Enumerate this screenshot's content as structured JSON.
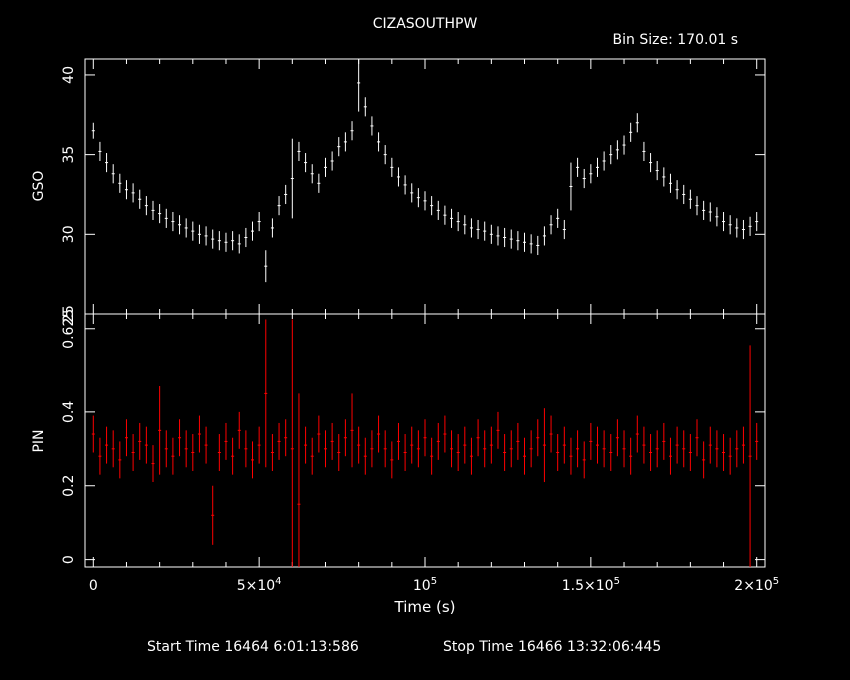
{
  "title": "CIZASOUTHPW",
  "bin_size": "Bin Size: 170.01 s",
  "footer": {
    "start": "Start Time 16464  6:01:13:586",
    "stop": "Stop Time 16466 13:32:06:445"
  },
  "colors": {
    "background": "#000000",
    "axes": "#ffffff",
    "gso": "#ffffff",
    "pin": "#ff0000"
  },
  "chart_data": [
    {
      "type": "scatter",
      "name": "gso-panel",
      "ylabel": "GSO",
      "xlim": [
        -2500,
        202500
      ],
      "ylim": [
        25,
        41
      ],
      "y_ticks": [
        {
          "v": 25,
          "label": "25"
        },
        {
          "v": 30,
          "label": "30"
        },
        {
          "v": 35,
          "label": "35"
        },
        {
          "v": 40,
          "label": "40"
        }
      ],
      "color": "#ffffff",
      "series": [
        {
          "x": [
            0,
            2000,
            4000,
            6000,
            8000,
            10000,
            12000,
            14000,
            16000,
            18000,
            20000,
            22000,
            24000,
            26000,
            28000,
            30000,
            32000,
            34000,
            36000,
            38000,
            40000,
            42000,
            44000,
            46000,
            48000,
            50000,
            52000,
            54000,
            56000,
            58000,
            60000,
            62000,
            64000,
            66000,
            68000,
            70000,
            72000,
            74000,
            76000,
            78000,
            80000,
            82000,
            84000,
            86000,
            88000,
            90000,
            92000,
            94000,
            96000,
            98000,
            100000,
            102000,
            104000,
            106000,
            108000,
            110000,
            112000,
            114000,
            116000,
            118000,
            120000,
            122000,
            124000,
            126000,
            128000,
            130000,
            132000,
            134000,
            136000,
            138000,
            140000,
            142000,
            144000,
            146000,
            148000,
            150000,
            152000,
            154000,
            156000,
            158000,
            160000,
            162000,
            164000,
            166000,
            168000,
            170000,
            172000,
            174000,
            176000,
            178000,
            180000,
            182000,
            184000,
            186000,
            188000,
            190000,
            192000,
            194000,
            196000,
            198000,
            200000
          ],
          "y": [
            36.5,
            35.2,
            34.5,
            33.8,
            33.2,
            32.8,
            32.6,
            32.2,
            31.8,
            31.5,
            31.3,
            31.0,
            30.8,
            30.6,
            30.4,
            30.2,
            30.0,
            29.9,
            29.7,
            29.6,
            29.5,
            29.6,
            29.4,
            29.8,
            30.2,
            30.8,
            28.0,
            30.4,
            31.8,
            32.5,
            33.5,
            35.2,
            34.5,
            33.8,
            33.2,
            34.2,
            34.6,
            35.5,
            35.8,
            36.5,
            39.5,
            38.0,
            36.8,
            35.8,
            35.0,
            34.2,
            33.6,
            33.1,
            32.6,
            32.3,
            32.1,
            31.8,
            31.5,
            31.2,
            31.0,
            30.8,
            30.6,
            30.4,
            30.3,
            30.2,
            30.0,
            29.9,
            29.8,
            29.7,
            29.6,
            29.5,
            29.4,
            29.3,
            29.9,
            30.6,
            31.0,
            30.3,
            33.0,
            34.2,
            33.5,
            33.8,
            34.2,
            34.6,
            35.0,
            35.3,
            35.6,
            36.4,
            37.0,
            35.2,
            34.5,
            34.0,
            33.6,
            33.2,
            32.8,
            32.5,
            32.2,
            31.8,
            31.5,
            31.4,
            31.1,
            30.8,
            30.6,
            30.4,
            30.3,
            30.5,
            30.8
          ],
          "err": [
            0.5,
            0.6,
            0.6,
            0.6,
            0.6,
            0.6,
            0.6,
            0.6,
            0.6,
            0.6,
            0.6,
            0.6,
            0.6,
            0.6,
            0.6,
            0.6,
            0.6,
            0.6,
            0.6,
            0.6,
            0.6,
            0.6,
            0.6,
            0.6,
            0.6,
            0.6,
            1.0,
            0.6,
            0.6,
            0.6,
            2.5,
            0.6,
            0.6,
            0.6,
            0.6,
            0.6,
            0.6,
            0.6,
            0.6,
            0.6,
            1.8,
            0.6,
            0.6,
            0.6,
            0.6,
            0.6,
            0.6,
            0.6,
            0.6,
            0.6,
            0.6,
            0.6,
            0.6,
            0.6,
            0.6,
            0.6,
            0.6,
            0.6,
            0.6,
            0.6,
            0.6,
            0.6,
            0.6,
            0.6,
            0.6,
            0.6,
            0.6,
            0.6,
            0.6,
            0.6,
            0.6,
            0.6,
            1.5,
            0.6,
            0.6,
            0.6,
            0.6,
            0.6,
            0.6,
            0.6,
            0.6,
            0.6,
            0.6,
            0.6,
            0.6,
            0.6,
            0.6,
            0.6,
            0.6,
            0.6,
            0.6,
            0.6,
            0.6,
            0.6,
            0.6,
            0.6,
            0.6,
            0.6,
            0.6,
            0.6,
            0.6
          ]
        }
      ]
    },
    {
      "type": "scatter",
      "name": "pin-panel",
      "ylabel": "PIN",
      "xlabel": "Time (s)",
      "xlim": [
        -2500,
        202500
      ],
      "ylim": [
        -0.02,
        0.665
      ],
      "y_ticks": [
        {
          "v": 0,
          "label": "0"
        },
        {
          "v": 0.2,
          "label": "0.2"
        },
        {
          "v": 0.4,
          "label": "0.4"
        },
        {
          "v": 0.625,
          "label": "0.625"
        }
      ],
      "x_ticks": [
        {
          "v": 0,
          "label": "0",
          "exp": ""
        },
        {
          "v": 50000,
          "label": "5×10",
          "exp": "4"
        },
        {
          "v": 100000,
          "label": "10",
          "exp": "5"
        },
        {
          "v": 150000,
          "label": "1.5×10",
          "exp": "5"
        },
        {
          "v": 200000,
          "label": "2×10",
          "exp": "5"
        }
      ],
      "color": "#ff0000",
      "series": [
        {
          "x": [
            0,
            2000,
            4000,
            6000,
            8000,
            10000,
            12000,
            14000,
            16000,
            18000,
            20000,
            22000,
            24000,
            26000,
            28000,
            30000,
            32000,
            34000,
            36000,
            38000,
            40000,
            42000,
            44000,
            46000,
            48000,
            50000,
            52000,
            54000,
            56000,
            58000,
            60000,
            62000,
            64000,
            66000,
            68000,
            70000,
            72000,
            74000,
            76000,
            78000,
            80000,
            82000,
            84000,
            86000,
            88000,
            90000,
            92000,
            94000,
            96000,
            98000,
            100000,
            102000,
            104000,
            106000,
            108000,
            110000,
            112000,
            114000,
            116000,
            118000,
            120000,
            122000,
            124000,
            126000,
            128000,
            130000,
            132000,
            134000,
            136000,
            138000,
            140000,
            142000,
            144000,
            146000,
            148000,
            150000,
            152000,
            154000,
            156000,
            158000,
            160000,
            162000,
            164000,
            166000,
            168000,
            170000,
            172000,
            174000,
            176000,
            178000,
            180000,
            182000,
            184000,
            186000,
            188000,
            190000,
            192000,
            194000,
            196000,
            198000,
            200000
          ],
          "y": [
            0.34,
            0.28,
            0.31,
            0.3,
            0.27,
            0.33,
            0.29,
            0.32,
            0.31,
            0.26,
            0.35,
            0.3,
            0.28,
            0.33,
            0.3,
            0.29,
            0.34,
            0.31,
            0.12,
            0.29,
            0.32,
            0.28,
            0.35,
            0.3,
            0.27,
            0.31,
            0.45,
            0.29,
            0.32,
            0.33,
            0.3,
            0.15,
            0.31,
            0.28,
            0.34,
            0.3,
            0.32,
            0.29,
            0.33,
            0.35,
            0.31,
            0.28,
            0.3,
            0.34,
            0.3,
            0.27,
            0.32,
            0.29,
            0.31,
            0.3,
            0.33,
            0.28,
            0.32,
            0.34,
            0.3,
            0.29,
            0.31,
            0.28,
            0.33,
            0.3,
            0.31,
            0.35,
            0.29,
            0.3,
            0.32,
            0.28,
            0.3,
            0.33,
            0.31,
            0.34,
            0.29,
            0.31,
            0.28,
            0.3,
            0.27,
            0.32,
            0.31,
            0.3,
            0.29,
            0.33,
            0.3,
            0.28,
            0.34,
            0.31,
            0.29,
            0.3,
            0.32,
            0.28,
            0.31,
            0.3,
            0.29,
            0.33,
            0.27,
            0.31,
            0.3,
            0.29,
            0.28,
            0.3,
            0.31,
            0.28,
            0.32
          ],
          "err": [
            0.05,
            0.05,
            0.05,
            0.05,
            0.05,
            0.05,
            0.05,
            0.05,
            0.05,
            0.05,
            0.12,
            0.05,
            0.05,
            0.05,
            0.05,
            0.05,
            0.05,
            0.05,
            0.08,
            0.05,
            0.05,
            0.05,
            0.05,
            0.05,
            0.05,
            0.05,
            0.2,
            0.05,
            0.05,
            0.05,
            0.35,
            0.3,
            0.05,
            0.05,
            0.05,
            0.05,
            0.05,
            0.05,
            0.05,
            0.1,
            0.05,
            0.05,
            0.05,
            0.05,
            0.05,
            0.05,
            0.05,
            0.05,
            0.05,
            0.05,
            0.05,
            0.05,
            0.05,
            0.05,
            0.05,
            0.05,
            0.05,
            0.05,
            0.05,
            0.05,
            0.05,
            0.05,
            0.05,
            0.05,
            0.05,
            0.05,
            0.05,
            0.05,
            0.1,
            0.05,
            0.05,
            0.05,
            0.05,
            0.05,
            0.05,
            0.05,
            0.05,
            0.05,
            0.05,
            0.05,
            0.05,
            0.05,
            0.05,
            0.05,
            0.05,
            0.05,
            0.05,
            0.05,
            0.05,
            0.05,
            0.05,
            0.05,
            0.05,
            0.05,
            0.05,
            0.05,
            0.05,
            0.05,
            0.05,
            0.3,
            0.05
          ]
        }
      ]
    }
  ]
}
